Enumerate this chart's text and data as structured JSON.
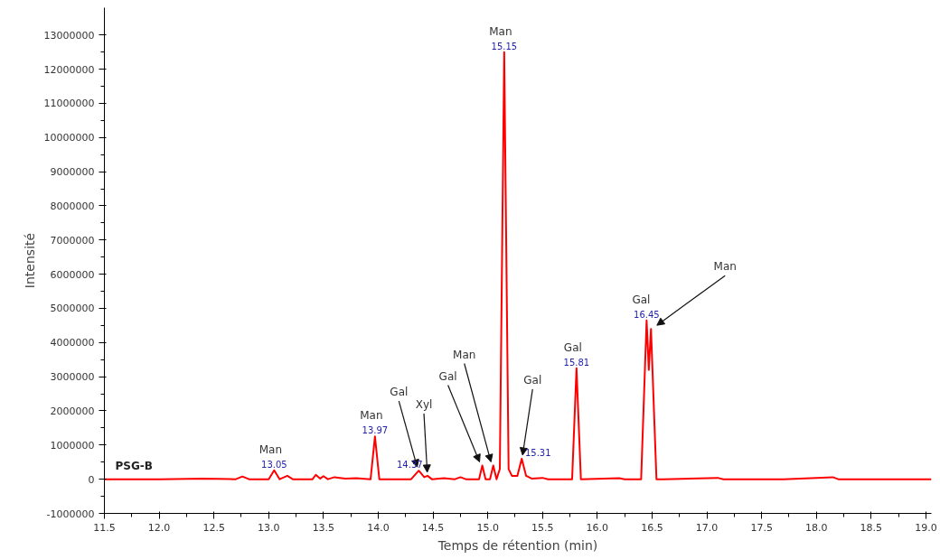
{
  "chart_data": {
    "type": "line",
    "xlabel": "Temps de rétention (min)",
    "ylabel": "Intensité",
    "xlim": [
      11.5,
      19.05
    ],
    "ylim": [
      -1000000,
      13800000
    ],
    "xticks": [
      11.5,
      {
        "value": 12,
        "label": "12.0"
      },
      12.5,
      {
        "value": 13,
        "label": "13.0"
      },
      13.5,
      {
        "value": 14,
        "label": "14.0"
      },
      14.5,
      {
        "value": 15,
        "label": "15.0"
      },
      15.5,
      {
        "value": 16,
        "label": "16.0"
      },
      16.5,
      {
        "value": 17,
        "label": "17.0"
      },
      17.5,
      {
        "value": 18,
        "label": "18.0"
      },
      18.5,
      {
        "value": 19,
        "label": "19.0"
      }
    ],
    "yticks": [
      -1000000,
      0,
      1000000,
      2000000,
      3000000,
      4000000,
      5000000,
      6000000,
      7000000,
      8000000,
      9000000,
      10000000,
      11000000,
      12000000,
      13000000
    ],
    "grid": false,
    "legend": false,
    "marker": "none",
    "line_style": "solid",
    "series": [
      {
        "name": "PSG-B",
        "color": "#ff0000",
        "x": [
          11.5,
          12.0,
          12.4,
          12.7,
          12.76,
          12.82,
          13.0,
          13.05,
          13.1,
          13.17,
          13.22,
          13.4,
          13.43,
          13.47,
          13.5,
          13.54,
          13.6,
          13.7,
          13.8,
          13.93,
          13.97,
          14.01,
          14.3,
          14.37,
          14.42,
          14.45,
          14.49,
          14.6,
          14.7,
          14.75,
          14.8,
          14.92,
          14.95,
          14.98,
          15.02,
          15.05,
          15.08,
          15.11,
          15.15,
          15.19,
          15.22,
          15.27,
          15.31,
          15.35,
          15.4,
          15.5,
          15.55,
          15.77,
          15.81,
          15.85,
          16.2,
          16.25,
          16.4,
          16.45,
          16.47,
          16.49,
          16.54,
          16.6,
          17.1,
          17.15,
          17.7,
          18.15,
          18.2,
          19.05
        ],
        "values": [
          0,
          0,
          20000,
          0,
          80000,
          0,
          0,
          260000,
          0,
          100000,
          0,
          0,
          130000,
          20000,
          90000,
          0,
          60000,
          20000,
          30000,
          0,
          1250000,
          0,
          0,
          250000,
          60000,
          100000,
          0,
          30000,
          0,
          60000,
          0,
          0,
          400000,
          0,
          0,
          400000,
          0,
          300000,
          12500000,
          300000,
          100000,
          100000,
          600000,
          100000,
          20000,
          40000,
          0,
          0,
          3250000,
          0,
          30000,
          0,
          0,
          4650000,
          3200000,
          4400000,
          0,
          0,
          40000,
          0,
          0,
          60000,
          0,
          0
        ]
      }
    ],
    "annotations": [
      {
        "text": "Man",
        "x": 13.05,
        "y": 260000
      },
      {
        "text": "13.05",
        "x": 13.05,
        "y": 260000
      },
      {
        "text": "Man",
        "x": 13.97,
        "y": 1250000
      },
      {
        "text": "13.97",
        "x": 13.97,
        "y": 1250000
      },
      {
        "text": "Gal",
        "x": 14.37,
        "y": 250000
      },
      {
        "text": "14.37",
        "x": 14.37,
        "y": 250000
      },
      {
        "text": "Xyl",
        "x": 14.45,
        "y": 100000
      },
      {
        "text": "Gal",
        "x": 14.95,
        "y": 400000
      },
      {
        "text": "Man",
        "x": 15.05,
        "y": 400000
      },
      {
        "text": "Man",
        "x": 15.15,
        "y": 12500000
      },
      {
        "text": "15.15",
        "x": 15.15,
        "y": 12500000
      },
      {
        "text": "Gal",
        "x": 15.31,
        "y": 600000
      },
      {
        "text": "15.31",
        "x": 15.31,
        "y": 600000
      },
      {
        "text": "Gal",
        "x": 15.81,
        "y": 3250000
      },
      {
        "text": "15.81",
        "x": 15.81,
        "y": 3250000
      },
      {
        "text": "Gal",
        "x": 16.45,
        "y": 4650000
      },
      {
        "text": "16.45",
        "x": 16.45,
        "y": 4650000
      },
      {
        "text": "Man",
        "x": 16.49,
        "y": 4400000
      }
    ]
  }
}
